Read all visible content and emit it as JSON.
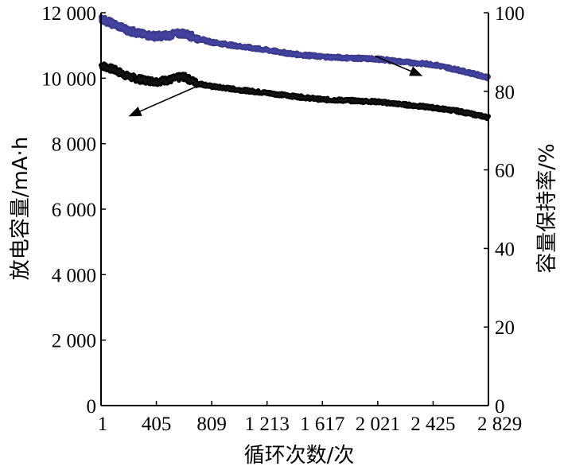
{
  "chart_data": {
    "type": "line",
    "title": "",
    "xlabel": "循环次数/次",
    "ylabel_left": "放电容量/mA·h",
    "ylabel_right": "容量保持率/%",
    "xlim": [
      1,
      2829
    ],
    "ylim_left": [
      0,
      12000
    ],
    "ylim_right": [
      0,
      100
    ],
    "x_ticks": [
      "1",
      "405",
      "809",
      "1 213",
      "1 617",
      "2 021",
      "2 425",
      "2 829"
    ],
    "x_tick_values": [
      1,
      405,
      809,
      1213,
      1617,
      2021,
      2425,
      2829
    ],
    "y_left_ticks": [
      "0",
      "2 000",
      "4 000",
      "6 000",
      "8 000",
      "10 000",
      "12 000"
    ],
    "y_left_tick_values": [
      0,
      2000,
      4000,
      6000,
      8000,
      10000,
      12000
    ],
    "y_right_ticks": [
      "0",
      "20",
      "40",
      "60",
      "80",
      "100"
    ],
    "y_right_tick_values": [
      0,
      20,
      40,
      60,
      80,
      100
    ],
    "grid": false,
    "legend": "none",
    "series": [
      {
        "axis": "left",
        "color": "#000000",
        "x": [
          1,
          100,
          200,
          300,
          405,
          500,
          600,
          700,
          809,
          1000,
          1213,
          1400,
          1617,
          1800,
          2021,
          2200,
          2425,
          2600,
          2829
        ],
        "y": [
          10400,
          10250,
          10050,
          9950,
          9900,
          9950,
          10050,
          9850,
          9750,
          9650,
          9550,
          9450,
          9350,
          9320,
          9280,
          9200,
          9100,
          9000,
          8800
        ]
      },
      {
        "axis": "right",
        "color": "#3b3a8c",
        "x": [
          1,
          100,
          200,
          300,
          405,
          500,
          600,
          700,
          809,
          1000,
          1213,
          1400,
          1617,
          1800,
          2021,
          2200,
          2425,
          2600,
          2829
        ],
        "y": [
          98.5,
          97,
          95.5,
          94.5,
          94,
          94.3,
          94.8,
          93.5,
          92.5,
          91.5,
          90.5,
          89.5,
          88.8,
          88.5,
          88.2,
          87.5,
          86.8,
          85.5,
          83.5
        ]
      }
    ],
    "annotations": [
      {
        "type": "arrow",
        "x": [
          700,
          210
        ],
        "y_left": [
          9750,
          8850
        ]
      },
      {
        "type": "arrow",
        "x": [
          2000,
          2340
        ],
        "y_right": [
          89,
          84
        ]
      }
    ]
  }
}
